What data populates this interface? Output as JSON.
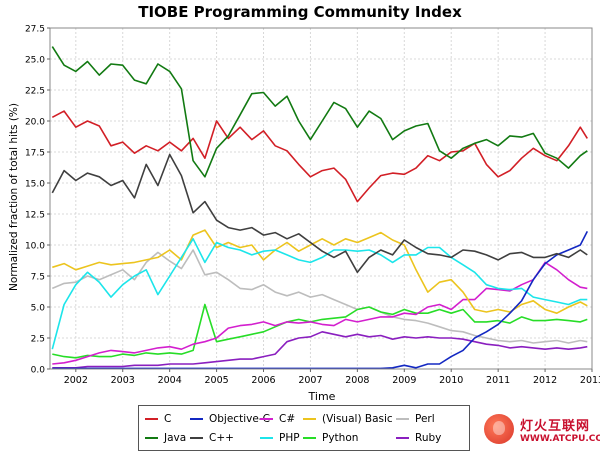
{
  "chart_data": {
    "type": "line",
    "title": "TIOBE Programming Community Index",
    "xlabel": "Time",
    "ylabel": "Normalized fraction of total hits (%)",
    "xlim": [
      2001.45,
      2013.0
    ],
    "ylim": [
      0,
      27.5
    ],
    "xticks": [
      "2002",
      "2003",
      "2004",
      "2005",
      "2006",
      "2007",
      "2008",
      "2009",
      "2010",
      "2011",
      "2012",
      "2013"
    ],
    "yticks": [
      "0.0",
      "2.5",
      "5.0",
      "7.5",
      "10.0",
      "12.5",
      "15.0",
      "17.5",
      "20.0",
      "22.5",
      "25.0",
      "27.5"
    ],
    "grid": true,
    "legend_position": "bottom",
    "x": [
      2001.5,
      2001.75,
      2002.0,
      2002.25,
      2002.5,
      2002.75,
      2003.0,
      2003.25,
      2003.5,
      2003.75,
      2004.0,
      2004.25,
      2004.5,
      2004.75,
      2005.0,
      2005.25,
      2005.5,
      2005.75,
      2006.0,
      2006.25,
      2006.5,
      2006.75,
      2007.0,
      2007.25,
      2007.5,
      2007.75,
      2008.0,
      2008.25,
      2008.5,
      2008.75,
      2009.0,
      2009.25,
      2009.5,
      2009.75,
      2010.0,
      2010.25,
      2010.5,
      2010.75,
      2011.0,
      2011.25,
      2011.5,
      2011.75,
      2012.0,
      2012.25,
      2012.5,
      2012.75,
      2012.9
    ],
    "series": [
      {
        "name": "C",
        "color": "#d21f26",
        "values": [
          20.3,
          20.8,
          19.5,
          20.0,
          19.6,
          18.0,
          18.3,
          17.4,
          18.0,
          17.6,
          18.3,
          17.6,
          18.6,
          17.0,
          20.0,
          18.6,
          19.5,
          18.5,
          19.2,
          18.0,
          17.6,
          16.5,
          15.5,
          16.0,
          16.2,
          15.3,
          13.5,
          14.6,
          15.6,
          15.8,
          15.7,
          16.2,
          17.2,
          16.8,
          17.5,
          17.6,
          18.2,
          16.5,
          15.5,
          16.0,
          17.0,
          17.8,
          17.2,
          16.8,
          18.0,
          19.5,
          18.6
        ]
      },
      {
        "name": "Java",
        "color": "#127a12",
        "values": [
          26.0,
          24.5,
          24.0,
          24.8,
          23.7,
          24.6,
          24.5,
          23.3,
          23.0,
          24.6,
          24.0,
          22.6,
          16.8,
          15.5,
          17.8,
          18.8,
          20.5,
          22.2,
          22.3,
          21.2,
          22.0,
          20.0,
          18.5,
          20.0,
          21.5,
          21.0,
          19.5,
          20.8,
          20.2,
          18.5,
          19.2,
          19.6,
          19.8,
          17.6,
          17.0,
          17.8,
          18.2,
          18.5,
          18.0,
          18.8,
          18.7,
          19.0,
          17.4,
          17.0,
          16.2,
          17.2,
          17.6
        ]
      },
      {
        "name": "Objective-C",
        "color": "#1328c2",
        "values": [
          0.05,
          0.05,
          0.05,
          0.05,
          0.05,
          0.05,
          0.05,
          0.05,
          0.05,
          0.05,
          0.05,
          0.05,
          0.05,
          0.05,
          0.05,
          0.05,
          0.05,
          0.05,
          0.05,
          0.05,
          0.05,
          0.05,
          0.05,
          0.05,
          0.05,
          0.05,
          0.05,
          0.05,
          0.05,
          0.1,
          0.3,
          0.1,
          0.4,
          0.4,
          1.0,
          1.5,
          2.5,
          3.0,
          3.6,
          4.5,
          5.5,
          7.2,
          8.5,
          9.2,
          9.6,
          10.0,
          11.1
        ]
      },
      {
        "name": "C++",
        "color": "#3f3f3f",
        "values": [
          14.2,
          16.0,
          15.2,
          15.8,
          15.5,
          14.8,
          15.2,
          13.8,
          16.5,
          14.8,
          17.3,
          15.6,
          12.6,
          13.5,
          12.0,
          11.4,
          11.2,
          11.4,
          10.8,
          11.0,
          10.5,
          10.9,
          10.2,
          9.5,
          9.0,
          9.5,
          7.8,
          9.0,
          9.6,
          9.2,
          10.4,
          9.8,
          9.3,
          9.2,
          9.0,
          9.6,
          9.5,
          9.2,
          8.8,
          9.3,
          9.4,
          9.0,
          9.0,
          9.3,
          9.0,
          9.6,
          9.2
        ]
      },
      {
        "name": "C#",
        "color": "#d31fce",
        "values": [
          0.4,
          0.5,
          0.7,
          1.0,
          1.3,
          1.5,
          1.4,
          1.3,
          1.5,
          1.7,
          1.8,
          1.6,
          2.0,
          2.2,
          2.5,
          3.3,
          3.5,
          3.6,
          3.8,
          3.5,
          3.8,
          3.7,
          3.8,
          3.6,
          3.5,
          4.0,
          3.8,
          4.0,
          4.2,
          4.2,
          4.5,
          4.4,
          5.0,
          5.2,
          4.8,
          5.6,
          5.6,
          6.5,
          6.4,
          6.3,
          6.8,
          7.2,
          8.6,
          8.0,
          7.2,
          6.6,
          6.5
        ]
      },
      {
        "name": "PHP",
        "color": "#1ce5ea",
        "values": [
          1.6,
          5.2,
          6.8,
          7.8,
          7.0,
          5.8,
          6.8,
          7.5,
          8.0,
          6.0,
          7.5,
          9.0,
          10.5,
          8.6,
          10.2,
          9.8,
          9.6,
          9.2,
          9.5,
          9.6,
          9.2,
          8.8,
          8.6,
          9.0,
          9.6,
          9.6,
          9.5,
          9.6,
          9.2,
          8.6,
          9.2,
          9.2,
          9.8,
          9.8,
          9.0,
          8.4,
          7.8,
          6.8,
          6.5,
          6.4,
          6.5,
          5.8,
          5.6,
          5.4,
          5.2,
          5.6,
          5.6
        ]
      },
      {
        "name": "(Visual) Basic",
        "color": "#ecc41e",
        "values": [
          8.2,
          8.5,
          8.0,
          8.3,
          8.6,
          8.4,
          8.5,
          8.6,
          8.8,
          9.0,
          9.6,
          8.8,
          10.8,
          11.2,
          9.8,
          10.2,
          9.8,
          10.0,
          8.8,
          9.6,
          10.2,
          9.5,
          10.0,
          10.5,
          10.0,
          10.5,
          10.2,
          10.6,
          11.0,
          10.4,
          10.0,
          8.0,
          6.2,
          7.0,
          7.2,
          6.2,
          4.8,
          4.6,
          4.8,
          4.6,
          5.2,
          5.5,
          4.8,
          4.5,
          5.0,
          5.4,
          5.1
        ]
      },
      {
        "name": "Python",
        "color": "#27dd27",
        "values": [
          1.2,
          1.0,
          0.9,
          1.1,
          1.0,
          1.0,
          1.2,
          1.1,
          1.3,
          1.2,
          1.3,
          1.2,
          1.5,
          5.2,
          2.2,
          2.4,
          2.6,
          2.8,
          3.0,
          3.4,
          3.8,
          4.0,
          3.8,
          4.0,
          4.1,
          4.2,
          4.8,
          5.0,
          4.6,
          4.4,
          4.8,
          4.5,
          4.5,
          4.8,
          4.5,
          4.8,
          3.8,
          3.8,
          3.9,
          3.7,
          4.2,
          3.9,
          3.9,
          4.0,
          3.9,
          3.8,
          4.0
        ]
      },
      {
        "name": "Perl",
        "color": "#bdbdbd",
        "values": [
          6.5,
          6.9,
          7.0,
          7.5,
          7.2,
          7.6,
          8.0,
          7.2,
          8.6,
          9.4,
          8.7,
          8.1,
          9.6,
          7.6,
          7.8,
          7.2,
          6.5,
          6.4,
          6.8,
          6.2,
          5.9,
          6.2,
          5.8,
          6.0,
          5.6,
          5.2,
          4.8,
          5.0,
          4.6,
          4.2,
          4.0,
          3.9,
          3.7,
          3.4,
          3.1,
          3.0,
          2.7,
          2.5,
          2.3,
          2.2,
          2.3,
          2.1,
          2.2,
          2.3,
          2.1,
          2.3,
          2.2
        ]
      },
      {
        "name": "Ruby",
        "color": "#8a1fbf",
        "values": [
          0.1,
          0.1,
          0.1,
          0.2,
          0.2,
          0.2,
          0.2,
          0.3,
          0.3,
          0.3,
          0.4,
          0.4,
          0.4,
          0.5,
          0.6,
          0.7,
          0.8,
          0.8,
          1.0,
          1.2,
          2.2,
          2.5,
          2.6,
          3.0,
          2.8,
          2.6,
          2.8,
          2.6,
          2.7,
          2.4,
          2.6,
          2.5,
          2.6,
          2.5,
          2.5,
          2.4,
          2.2,
          2.0,
          1.9,
          1.7,
          1.8,
          1.7,
          1.6,
          1.7,
          1.6,
          1.7,
          1.8
        ]
      }
    ]
  },
  "watermark": {
    "cn_text": "灯火互联网",
    "url": "WWW.ATCPU.COM"
  }
}
